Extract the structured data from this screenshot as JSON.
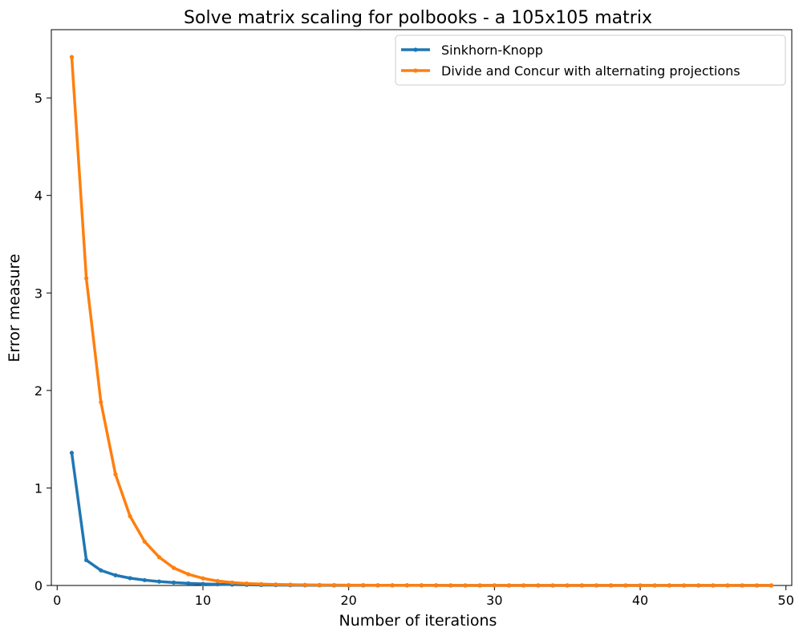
{
  "chart_data": {
    "type": "line",
    "title": "Solve matrix scaling for polbooks - a 105x105 matrix",
    "xlabel": "Number of iterations",
    "ylabel": "Error measure",
    "xlim": [
      -0.4,
      50.4
    ],
    "ylim": [
      0,
      5.7
    ],
    "xticks": [
      0,
      10,
      20,
      30,
      40,
      50
    ],
    "yticks": [
      0,
      1,
      2,
      3,
      4,
      5
    ],
    "grid": false,
    "legend_position": "top-right",
    "series": [
      {
        "name": "Sinkhorn-Knopp",
        "color": "#1f77b4",
        "x": [
          1,
          2,
          3,
          4,
          5,
          6,
          7,
          8,
          9,
          10,
          11,
          12,
          13,
          14,
          15,
          16,
          17,
          18,
          19,
          20,
          21,
          22,
          23,
          24,
          25,
          26,
          27,
          28,
          29,
          30,
          31,
          32,
          33,
          34,
          35,
          36,
          37,
          38,
          39,
          40,
          41,
          42,
          43,
          44,
          45,
          46,
          47,
          48,
          49
        ],
        "y": [
          1.36,
          0.26,
          0.155,
          0.105,
          0.075,
          0.055,
          0.04,
          0.03,
          0.022,
          0.016,
          0.012,
          0.009,
          0.007,
          0.005,
          0.004,
          0.003,
          0.002,
          0.002,
          0.001,
          0.001,
          0.001,
          0.001,
          0.001,
          0.001,
          0.001,
          0.001,
          0.0,
          0.0,
          0.0,
          0.0,
          0.0,
          0.0,
          0.0,
          0.0,
          0.0,
          0.0,
          0.0,
          0.0,
          0.0,
          0.0,
          0.0,
          0.0,
          0.0,
          0.0,
          0.0,
          0.0,
          0.0,
          0.0,
          0.0
        ]
      },
      {
        "name": "Divide and Concur with alternating projections",
        "color": "#ff7f0e",
        "x": [
          1,
          2,
          3,
          4,
          5,
          6,
          7,
          8,
          9,
          10,
          11,
          12,
          13,
          14,
          15,
          16,
          17,
          18,
          19,
          20,
          21,
          22,
          23,
          24,
          25,
          26,
          27,
          28,
          29,
          30,
          31,
          32,
          33,
          34,
          35,
          36,
          37,
          38,
          39,
          40,
          41,
          42,
          43,
          44,
          45,
          46,
          47,
          48,
          49
        ],
        "y": [
          5.42,
          3.15,
          1.88,
          1.14,
          0.71,
          0.45,
          0.29,
          0.18,
          0.115,
          0.073,
          0.046,
          0.03,
          0.02,
          0.014,
          0.01,
          0.008,
          0.006,
          0.005,
          0.004,
          0.003,
          0.003,
          0.002,
          0.002,
          0.002,
          0.002,
          0.001,
          0.001,
          0.001,
          0.001,
          0.001,
          0.001,
          0.001,
          0.001,
          0.001,
          0.001,
          0.001,
          0.001,
          0.001,
          0.001,
          0.001,
          0.001,
          0.001,
          0.001,
          0.001,
          0.001,
          0.001,
          0.001,
          0.001,
          0.001
        ]
      }
    ]
  }
}
